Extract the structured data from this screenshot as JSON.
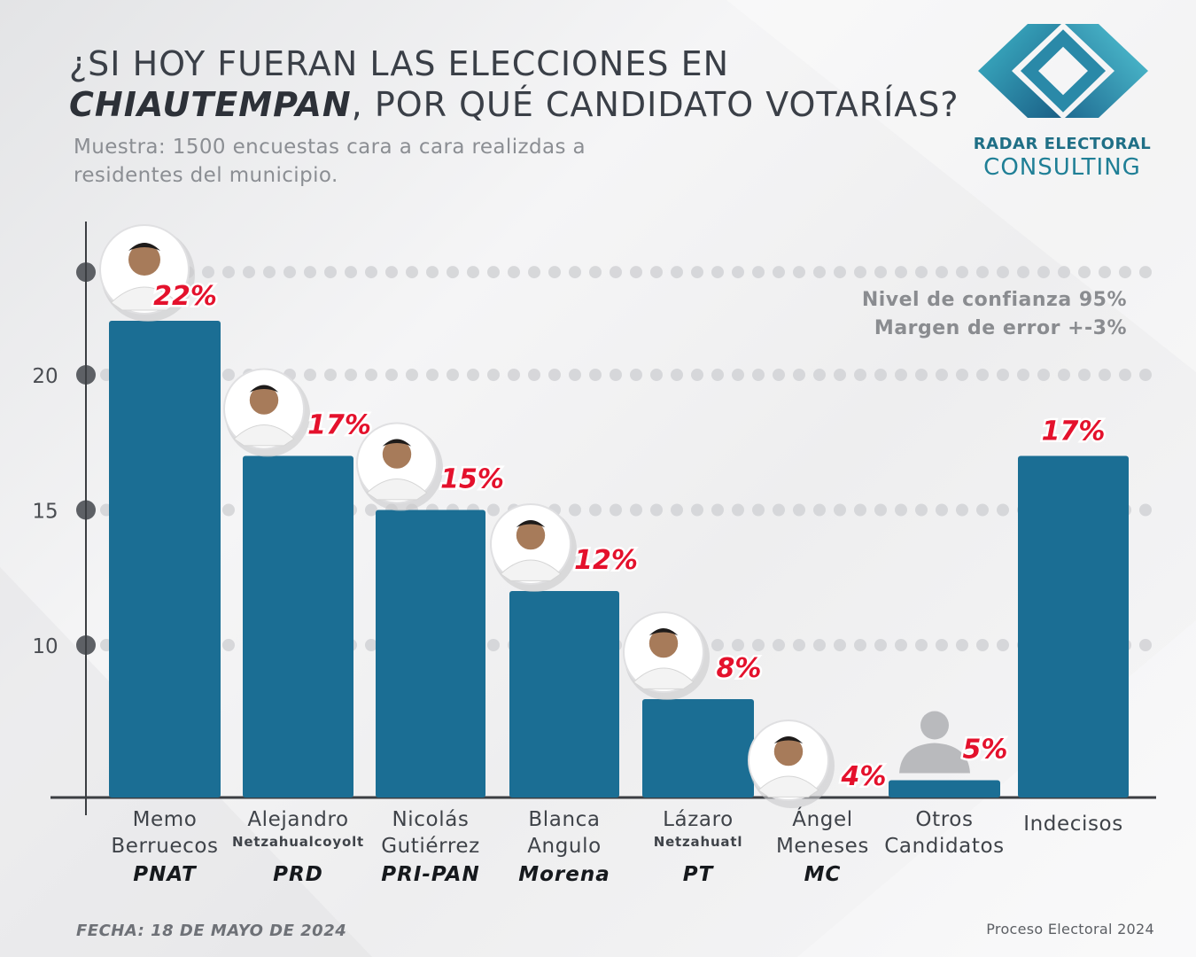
{
  "header": {
    "title_line1": "¿SI HOY FUERAN LAS ELECCIONES EN",
    "title_highlight": "CHIAUTEMPAN",
    "title_line2_rest": ", POR QUÉ CANDIDATO VOTARÍAS?",
    "subtitle": "Muestra: 1500 encuestas cara a cara realizdas a residentes del municipio."
  },
  "logo": {
    "icon": "radar-electoral-logo-icon",
    "name": "RADAR ELECTORAL",
    "sub": "CONSULTING"
  },
  "confidence": {
    "level": "Nivel de confianza 95%",
    "margin": "Margen de error +-3%"
  },
  "footer": {
    "date": "FECHA: 18 DE MAYO DE 2024",
    "process": "Proceso Electoral 2024"
  },
  "colors": {
    "bar": "#1b6e94",
    "label": "#e4112c",
    "axis": "#3b3e42"
  },
  "chart_data": {
    "type": "bar",
    "title": "¿SI HOY FUERAN LAS ELECCIONES EN CHIAUTEMPAN, POR QUÉ CANDIDATO VOTARÍAS?",
    "categories": [
      "Memo Berruecos",
      "Alejandro Netzahualcoyolt",
      "Nicolás Gutiérrez",
      "Blanca Angulo",
      "Lázaro Netzahuatl",
      "Ángel Meneses",
      "Otros Candidatos",
      "Indecisos"
    ],
    "values": [
      22,
      17,
      15,
      12,
      8,
      4,
      5,
      17
    ],
    "value_labels": [
      "22%",
      "17%",
      "15%",
      "12%",
      "8%",
      "4%",
      "5%",
      "17%"
    ],
    "parties": [
      "PNAT",
      "PRD",
      "PRI-PAN",
      "Morena",
      "PT",
      "MC",
      "",
      ""
    ],
    "yticks": [
      10,
      15,
      20
    ],
    "ylim": [
      4,
      25
    ],
    "grid": true,
    "candidates": [
      {
        "line1": "Memo",
        "line2": "Berruecos",
        "line2_small": false,
        "party": "PNAT",
        "photo": "candidate-photo"
      },
      {
        "line1": "Alejandro",
        "line2": "Netzahualcoyolt",
        "line2_small": true,
        "party": "PRD",
        "photo": "candidate-photo"
      },
      {
        "line1": "Nicolás",
        "line2": "Gutiérrez",
        "line2_small": false,
        "party": "PRI-PAN",
        "photo": "candidate-photo"
      },
      {
        "line1": "Blanca",
        "line2": "Angulo",
        "line2_small": false,
        "party": "Morena",
        "photo": "candidate-photo"
      },
      {
        "line1": "Lázaro",
        "line2": "Netzahuatl",
        "line2_small": true,
        "party": "PT",
        "photo": "candidate-photo"
      },
      {
        "line1": "Ángel",
        "line2": "Meneses",
        "line2_small": false,
        "party": "MC",
        "photo": "candidate-photo"
      },
      {
        "line1": "Otros",
        "line2": "Candidatos",
        "line2_small": false,
        "party": "",
        "photo": "generic-person-icon"
      },
      {
        "line1": "Indecisos",
        "line2": "",
        "line2_small": false,
        "party": "",
        "photo": ""
      }
    ]
  }
}
